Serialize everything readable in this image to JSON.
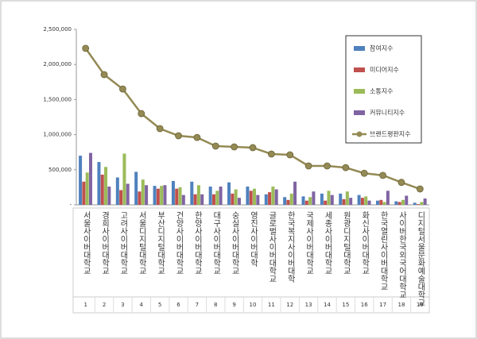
{
  "chart_data": {
    "type": "bar",
    "categories": [
      "서울사이버대학교",
      "경희사이버대학교",
      "고려사이버대학교",
      "서울디지털대학교",
      "부산디지털대학교",
      "건양사이버대학교",
      "한양사이버대학교",
      "대구사이버대학교",
      "숭실사이버대학교",
      "영진사이버대학",
      "글로벌사이버대학교",
      "한국복지사이버대학",
      "국제사이버대학교",
      "세종사이버대학교",
      "원광디지털대학교",
      "화신사이버대학교",
      "한국열린사이버대학교",
      "사이버한국외국어대학교",
      "디지털서울문화예술대학교"
    ],
    "category_numbers": [
      1,
      2,
      3,
      4,
      5,
      6,
      7,
      8,
      9,
      10,
      11,
      12,
      13,
      14,
      15,
      16,
      17,
      18,
      19
    ],
    "series": [
      {
        "name": "참여지수",
        "color": "#4f81bd",
        "values": [
          700000,
          610000,
          390000,
          470000,
          270000,
          340000,
          330000,
          260000,
          320000,
          260000,
          150000,
          110000,
          120000,
          160000,
          160000,
          140000,
          60000,
          50000,
          30000
        ]
      },
      {
        "name": "미디어지수",
        "color": "#c0504d",
        "values": [
          330000,
          430000,
          210000,
          190000,
          230000,
          230000,
          150000,
          150000,
          160000,
          200000,
          180000,
          70000,
          60000,
          60000,
          80000,
          100000,
          70000,
          40000,
          10000
        ]
      },
      {
        "name": "소통지수",
        "color": "#9bbb59",
        "values": [
          460000,
          540000,
          730000,
          360000,
          270000,
          250000,
          280000,
          200000,
          220000,
          230000,
          260000,
          160000,
          110000,
          200000,
          190000,
          120000,
          40000,
          70000,
          40000
        ]
      },
      {
        "name": "커뮤니티지수",
        "color": "#8064a2",
        "values": [
          740000,
          260000,
          300000,
          280000,
          280000,
          140000,
          150000,
          260000,
          100000,
          140000,
          220000,
          330000,
          190000,
          140000,
          100000,
          60000,
          200000,
          130000,
          90000
        ]
      },
      {
        "name": "브랜드평판지수",
        "color": "#948a54",
        "type": "line",
        "values": [
          2230000,
          1855000,
          1650000,
          1300000,
          1086000,
          984000,
          960000,
          837000,
          826000,
          815000,
          724000,
          713000,
          554000,
          554000,
          530000,
          450000,
          420000,
          320000,
          226000
        ]
      }
    ],
    "ylim": [
      0,
      2500000
    ],
    "yticks": [
      {
        "value": 0,
        "label": "-"
      },
      {
        "value": 500000,
        "label": "500,000"
      },
      {
        "value": 1000000,
        "label": "1,000,000"
      },
      {
        "value": 1500000,
        "label": "1,500,000"
      },
      {
        "value": 2000000,
        "label": "2,000,000"
      },
      {
        "value": 2500000,
        "label": "2,500,000"
      }
    ],
    "legend": "top-right"
  }
}
